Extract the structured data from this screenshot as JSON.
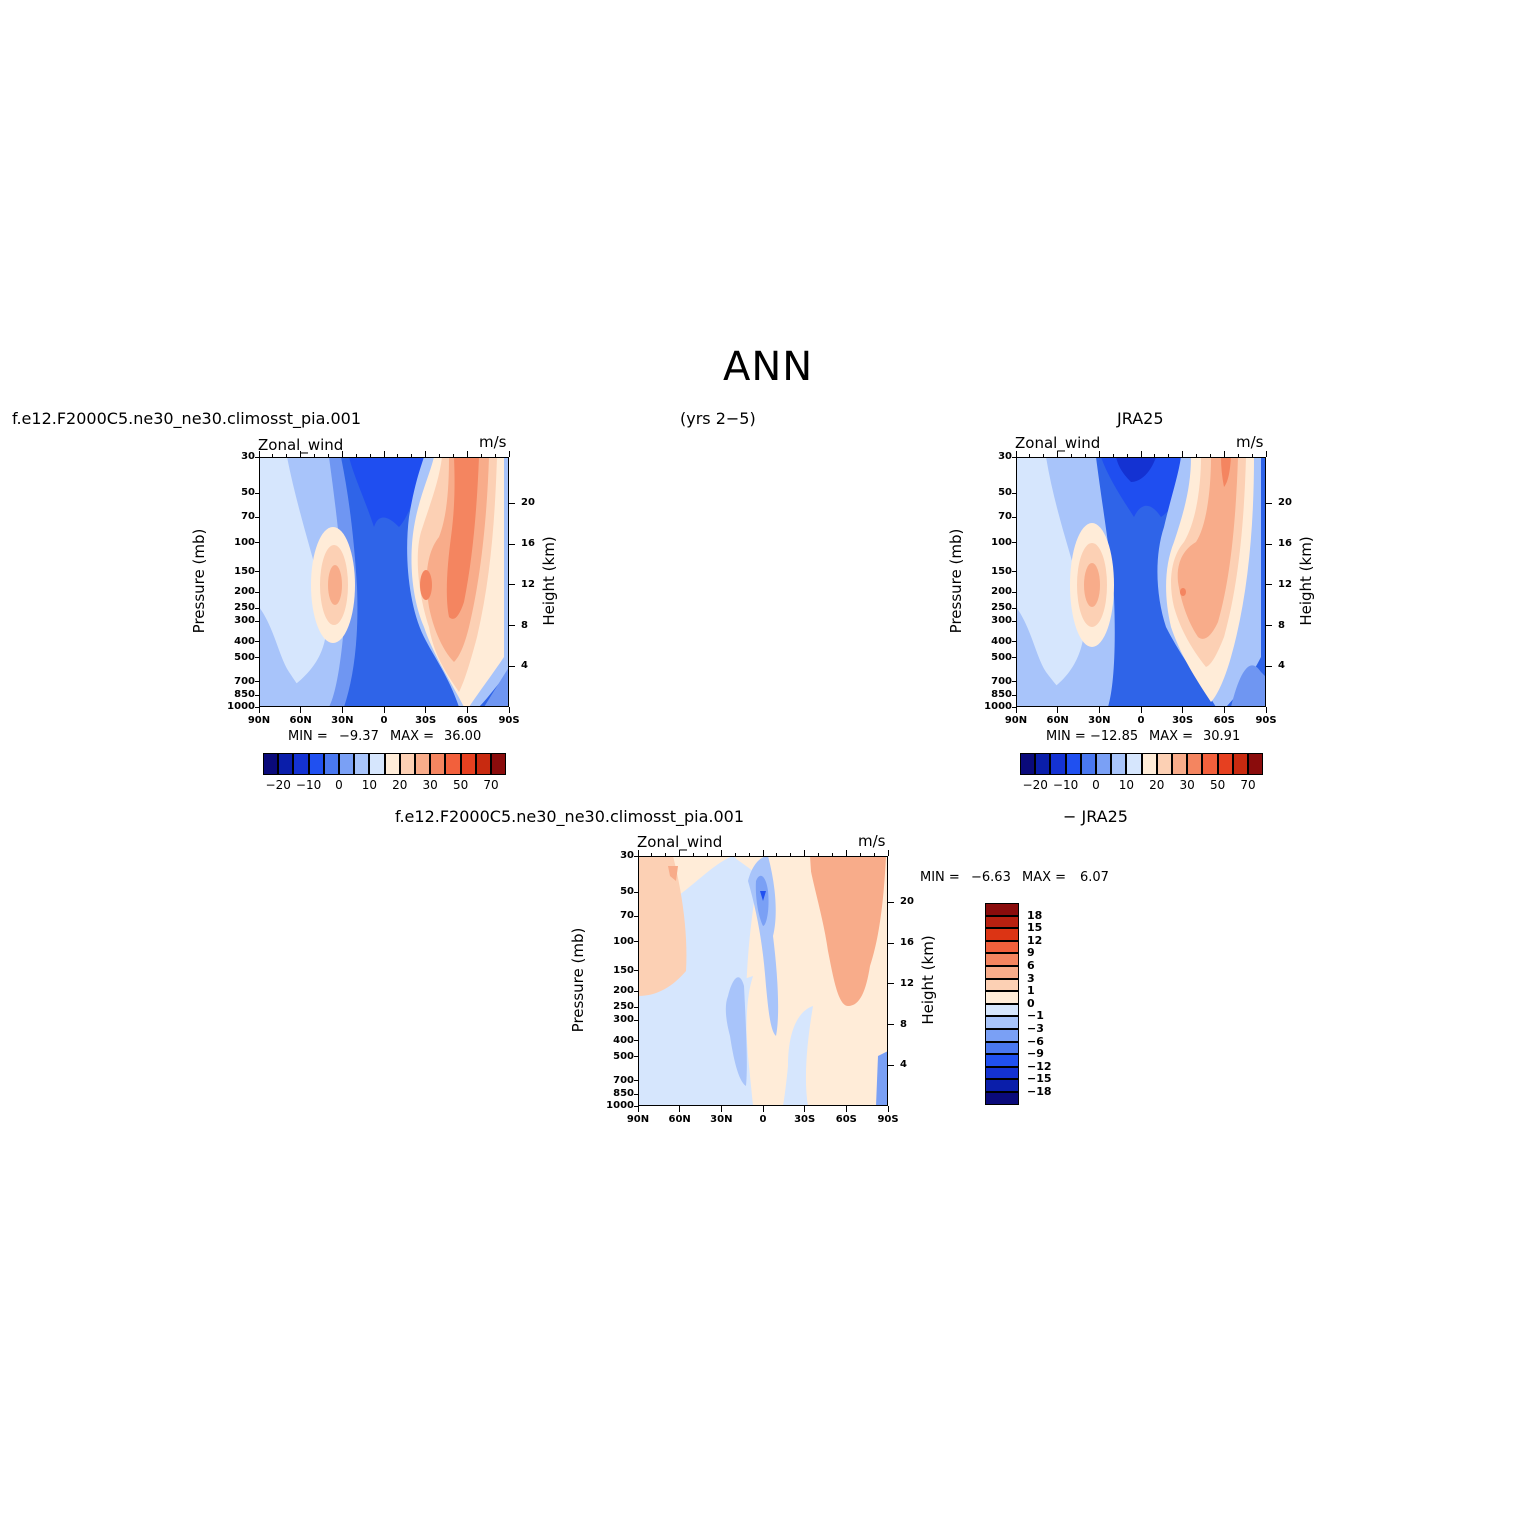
{
  "main_title": "ANN",
  "top_left": {
    "case_label": "f.e12.F2000C5.ne30_ne30.climosst_pia.001",
    "years_label": "(yrs 2−5)",
    "variable": "Zonal_wind",
    "units": "m/s",
    "min_label": "MIN =",
    "min_value": "−9.37",
    "max_label": "MAX =",
    "max_value": "36.00"
  },
  "top_right": {
    "case_label": "JRA25",
    "variable": "Zonal_wind",
    "units": "m/s",
    "min_label": "MIN =",
    "min_value": "−12.85",
    "max_label": "MAX =",
    "max_value": "30.91"
  },
  "bottom": {
    "case_label": "f.e12.F2000C5.ne30_ne30.climosst_pia.001",
    "minus_label": "− JRA25",
    "variable": "Zonal_wind",
    "units": "m/s",
    "min_label": "MIN =",
    "min_value": "−6.63",
    "max_label": "MAX =",
    "max_value": "6.07"
  },
  "axes": {
    "left_title": "Pressure (mb)",
    "right_title": "Height (km)",
    "x_ticks": [
      "90N",
      "60N",
      "30N",
      "0",
      "30S",
      "60S",
      "90S"
    ],
    "pressure_ticks": [
      "30",
      "50",
      "70",
      "100",
      "150",
      "200",
      "250",
      "300",
      "400",
      "500",
      "700",
      "850",
      "1000"
    ],
    "height_ticks": [
      "20",
      "16",
      "12",
      "8",
      "4"
    ]
  },
  "colorbars": {
    "horizontal_labels": [
      "−20",
      "−10",
      "0",
      "10",
      "20",
      "30",
      "50",
      "70"
    ],
    "horizontal_colors": [
      "#0a0a7a",
      "#0a1eaa",
      "#1432d2",
      "#2050f0",
      "#4a78f0",
      "#7aa0f5",
      "#a8c4fa",
      "#d6e6fd",
      "#ffecd8",
      "#fcd0b4",
      "#f8ac8a",
      "#f48560",
      "#f2603c",
      "#e64020",
      "#c82a10",
      "#8a0c0c"
    ],
    "vertical_labels": [
      "18",
      "15",
      "12",
      "9",
      "6",
      "3",
      "1",
      "0",
      "−1",
      "−3",
      "−6",
      "−9",
      "−12",
      "−15",
      "−18"
    ],
    "vertical_colors": [
      "#8a0c0c",
      "#b82010",
      "#dc3414",
      "#f2603c",
      "#f48560",
      "#f8ac8a",
      "#fcd0b4",
      "#ffecd8",
      "#d6e6fd",
      "#a8c4fa",
      "#7aa0f5",
      "#4a78f0",
      "#2050f0",
      "#1432d2",
      "#0a1eaa",
      "#0a0a7a"
    ]
  },
  "chart_data": [
    {
      "type": "heatmap",
      "title": "Zonal_wind",
      "units": "m/s",
      "x": [
        "90N",
        "60N",
        "30N",
        "0",
        "30S",
        "60S",
        "90S"
      ],
      "y": [
        "30",
        "50",
        "70",
        "100",
        "150",
        "200",
        "250",
        "300",
        "400",
        "500",
        "700",
        "850",
        "1000"
      ],
      "min": -9.37,
      "max": 36.0
    },
    {
      "type": "heatmap",
      "title": "Zonal_wind",
      "units": "m/s",
      "x": [
        "90N",
        "60N",
        "30N",
        "0",
        "30S",
        "60S",
        "90S"
      ],
      "y": [
        "30",
        "50",
        "70",
        "100",
        "150",
        "200",
        "250",
        "300",
        "400",
        "500",
        "700",
        "850",
        "1000"
      ],
      "min": -12.85,
      "max": 30.91
    },
    {
      "type": "heatmap",
      "title": "Zonal_wind",
      "units": "m/s",
      "x": [
        "90N",
        "60N",
        "30N",
        "0",
        "30S",
        "60S",
        "90S"
      ],
      "y": [
        "30",
        "50",
        "70",
        "100",
        "150",
        "200",
        "250",
        "300",
        "400",
        "500",
        "700",
        "850",
        "1000"
      ],
      "min": -6.63,
      "max": 6.07
    }
  ]
}
